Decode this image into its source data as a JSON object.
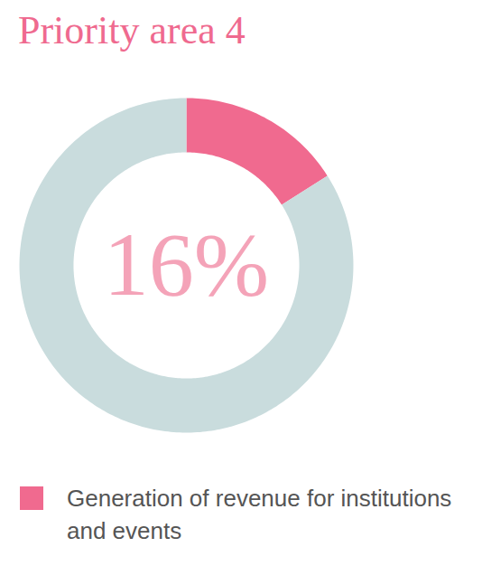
{
  "chart_data": {
    "type": "pie",
    "title": "Priority area 4",
    "categories": [
      "Generation of revenue for institutions and events",
      null
    ],
    "values": [
      16,
      84
    ],
    "value_labels": [
      "16%",
      null
    ],
    "colors": [
      "#f06a8f",
      "#c9dcdd"
    ],
    "data_labels": true,
    "legend": "bottom"
  }
}
